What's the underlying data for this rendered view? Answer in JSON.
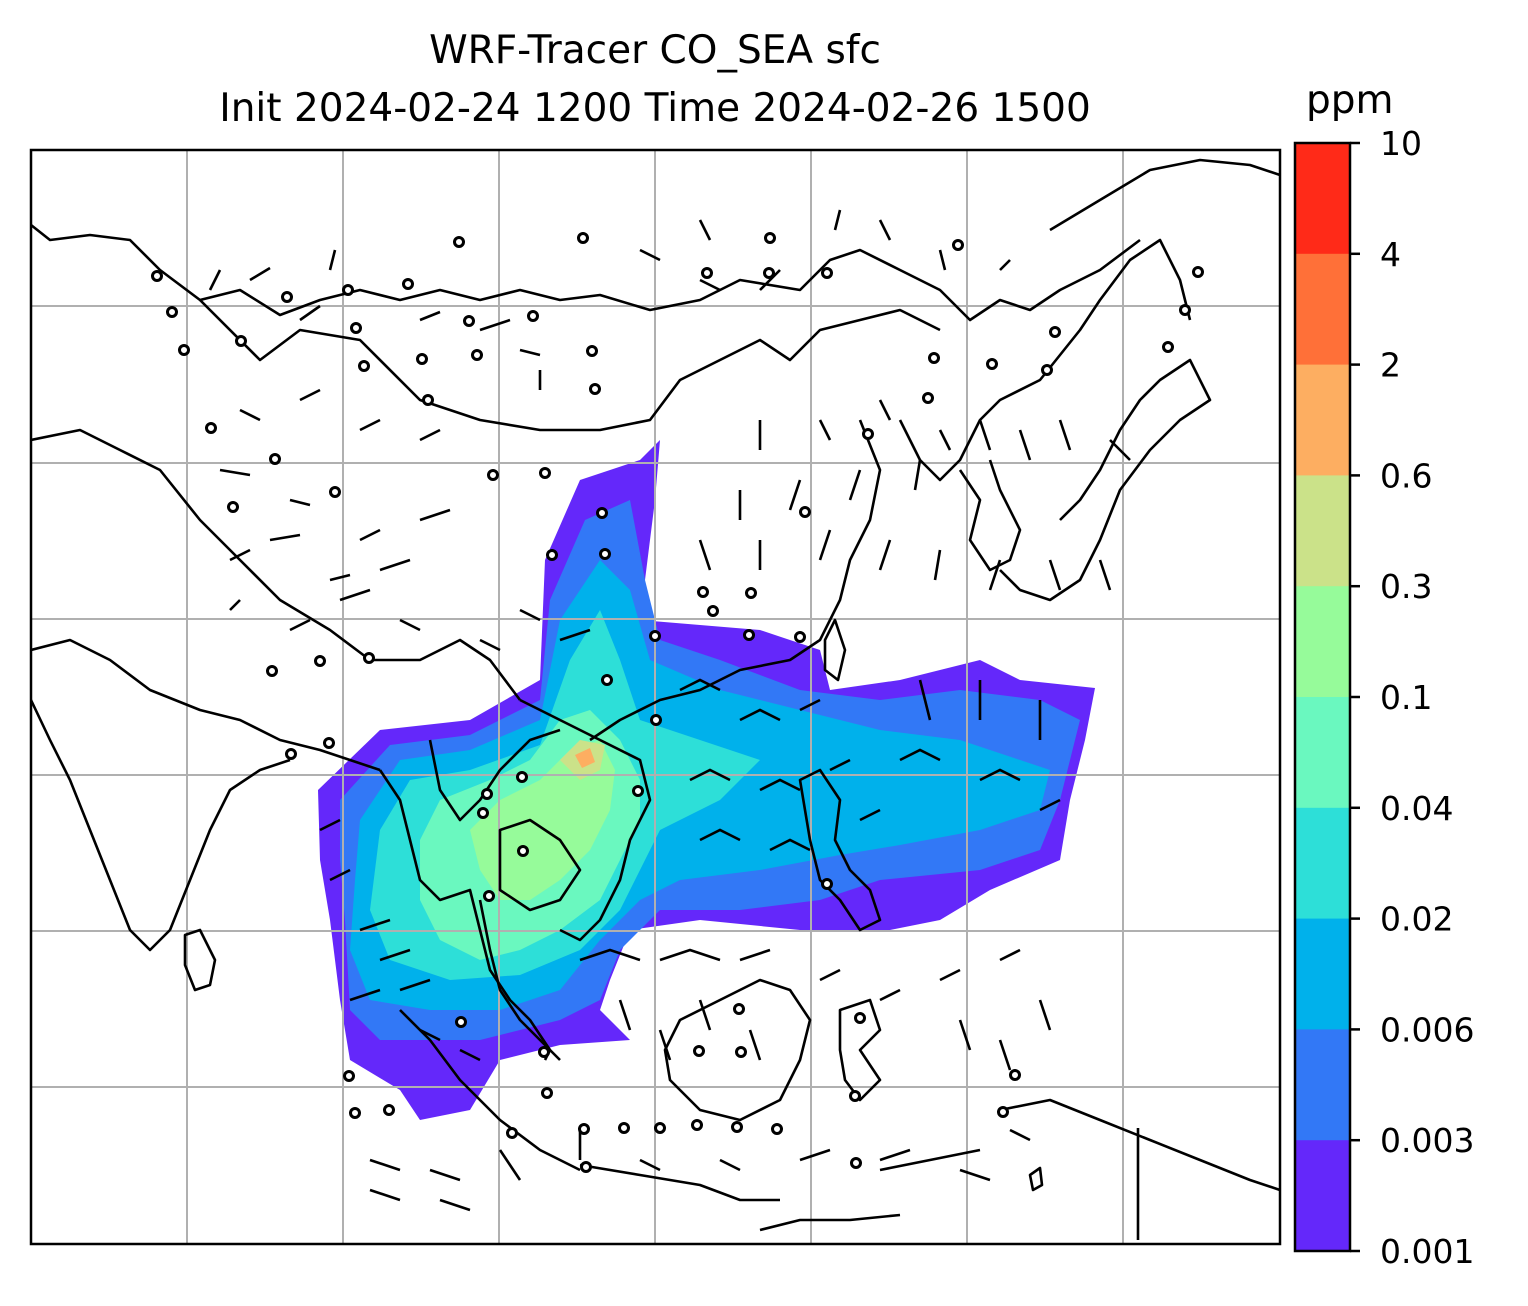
{
  "title": {
    "line1": "WRF-Tracer CO_SEA sfc",
    "line2": "Init 2024-02-24 1200 Time 2024-02-26 1500"
  },
  "colorbar": {
    "units": "ppm",
    "ticks": [
      "10",
      "4",
      "2",
      "0.6",
      "0.3",
      "0.1",
      "0.04",
      "0.02",
      "0.006",
      "0.003",
      "0.001"
    ],
    "colors": [
      "#ff2a18",
      "#ff7038",
      "#fdae61",
      "#cbe289",
      "#96fb9a",
      "#6af8bf",
      "#2ddfd8",
      "#00b1eb",
      "#3278f6",
      "#6428fa"
    ]
  },
  "map": {
    "gridlines": true,
    "ocean_color": "#ffffff",
    "coastline_color": "#000000",
    "tracer_field": "CO_SEA",
    "level": "sfc"
  }
}
